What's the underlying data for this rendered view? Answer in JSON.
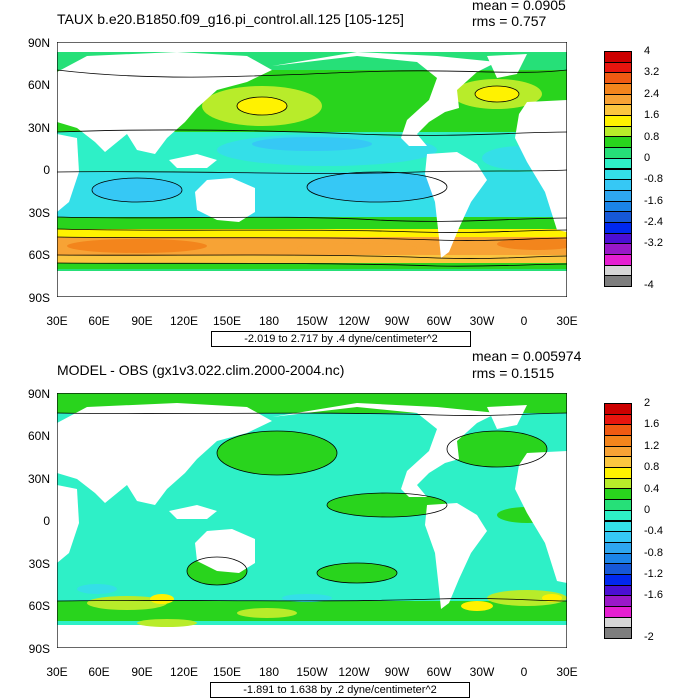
{
  "panels": [
    {
      "title": "TAUX b.e20.B1850.f09_g16.pi_control.all.125 [105-125]",
      "mean": "mean = 0.0905",
      "rms": "rms = 0.757",
      "caption": "-2.019 to 2.717 by .4 dyne/centimeter^2",
      "colorbar_labels": [
        "4",
        "3.2",
        "2.4",
        "1.6",
        "0.8",
        "0",
        "-0.8",
        "-1.6",
        "-2.4",
        "-3.2",
        "-4"
      ],
      "colorbar_colors": [
        "#cc0000",
        "#e8150e",
        "#f05a12",
        "#f3851c",
        "#f7a335",
        "#fbc640",
        "#fff200",
        "#b8ec2a",
        "#29d41d",
        "#26e078",
        "#2ef0c7",
        "#34dfe8",
        "#36c8f5",
        "#2ea6f0",
        "#1b84e8",
        "#1658d7",
        "#0028ef",
        "#4b0fd4",
        "#9a18c8",
        "#e51fd1",
        "#d6d6d6",
        "#7e7e7e"
      ]
    },
    {
      "title": "MODEL - OBS (gx1v3.022.clim.2000-2004.nc)",
      "mean": "mean = 0.005974",
      "rms": "rms = 0.1515",
      "caption": "-1.891 to 1.638 by .2 dyne/centimeter^2",
      "colorbar_labels": [
        "2",
        "1.6",
        "1.2",
        "0.8",
        "0.4",
        "0",
        "-0.4",
        "-0.8",
        "-1.2",
        "-1.6",
        "-2"
      ],
      "colorbar_colors": [
        "#cc0000",
        "#e8150e",
        "#f05a12",
        "#f3851c",
        "#f7a335",
        "#fbc640",
        "#fff200",
        "#b8ec2a",
        "#29d41d",
        "#26e078",
        "#2ef0c7",
        "#34dfe8",
        "#36c8f5",
        "#2ea6f0",
        "#1b84e8",
        "#1658d7",
        "#0028ef",
        "#4b0fd4",
        "#9a18c8",
        "#e51fd1",
        "#d6d6d6",
        "#7e7e7e"
      ]
    }
  ],
  "axes": {
    "lat_labels": [
      "90N",
      "60N",
      "30N",
      "0",
      "30S",
      "60S",
      "90S"
    ],
    "lon_labels": [
      "30E",
      "60E",
      "90E",
      "120E",
      "150E",
      "180",
      "150W",
      "120W",
      "90W",
      "60W",
      "30W",
      "0",
      "30E"
    ]
  }
}
